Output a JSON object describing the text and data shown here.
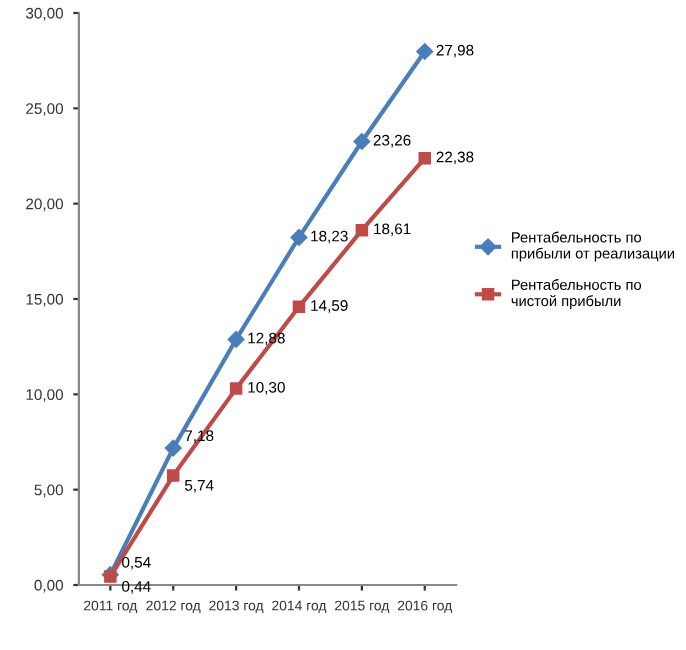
{
  "chart_data": {
    "type": "line",
    "categories": [
      "2011 год",
      "2012 год",
      "2013 год",
      "2014 год",
      "2015 год",
      "2016 год"
    ],
    "series": [
      {
        "name": "Рентабельность по прибыли от реализации",
        "color": "#4a7ebb",
        "marker": "diamond",
        "values": [
          0.54,
          7.18,
          12.88,
          18.23,
          23.26,
          27.98
        ],
        "value_labels": [
          "0,54",
          "7,18",
          "12,88",
          "18,23",
          "23,26",
          "27,98"
        ]
      },
      {
        "name": "Рентабельность по чистой прибыли",
        "color": "#be4b48",
        "marker": "square",
        "values": [
          0.44,
          5.74,
          10.3,
          14.59,
          18.61,
          22.38
        ],
        "value_labels": [
          "0,44",
          "5,74",
          "10,30",
          "14,59",
          "18,61",
          "22,38"
        ]
      }
    ],
    "ylim": [
      0,
      30
    ],
    "yticks": [
      {
        "value": 0,
        "label": "0,00"
      },
      {
        "value": 5,
        "label": "5,00"
      },
      {
        "value": 10,
        "label": "10,00"
      },
      {
        "value": 15,
        "label": "15,00"
      },
      {
        "value": 20,
        "label": "20,00"
      },
      {
        "value": 25,
        "label": "25,00"
      },
      {
        "value": 30,
        "label": "30,00"
      }
    ],
    "grid": false,
    "legend": "right",
    "line_style": "solid"
  }
}
